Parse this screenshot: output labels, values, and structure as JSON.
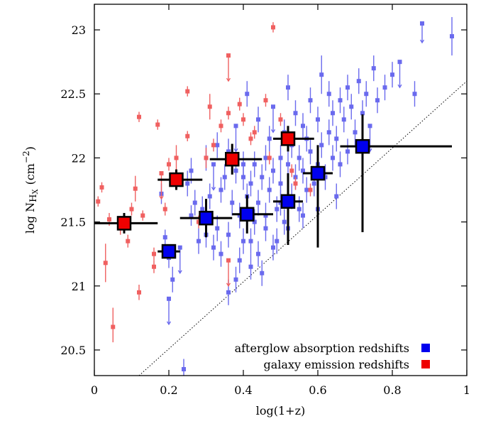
{
  "chart_data": {
    "type": "scatter",
    "xlabel": "log(1+z)",
    "ylabel": {
      "base": "log N",
      "sub1": "H",
      "sub2": "X",
      "unit_open": "(cm",
      "unit_sup": "−2",
      "unit_close": ")"
    },
    "xlim": [
      0,
      1
    ],
    "ylim": [
      20.3,
      23.2
    ],
    "xticks": [
      0,
      0.2,
      0.4,
      0.6,
      0.8,
      1
    ],
    "xtick_labels": [
      "0",
      "0.2",
      "0.4",
      "0.6",
      "0.8",
      "1"
    ],
    "yticks": [
      20.5,
      21,
      21.5,
      22,
      22.5,
      23
    ],
    "ytick_labels": [
      "20.5",
      "21",
      "21.5",
      "22",
      "22.5",
      "23"
    ],
    "grid": false,
    "legend_position": "bottom-right",
    "colors": {
      "afterglow_light": "#6a6aee",
      "galaxy_light": "#f06060",
      "afterglow_big": "#0000ee",
      "galaxy_big": "#ee0000",
      "errorbar": "#000000"
    },
    "reference_line": {
      "style": "dotted",
      "points": [
        [
          0.12,
          20.3
        ],
        [
          1.0,
          22.6
        ]
      ]
    },
    "series": [
      {
        "name": "afterglow absorption redshifts",
        "kind": "individual",
        "points": [
          [
            0.18,
            21.72,
            0.08,
            0.08
          ],
          [
            0.19,
            21.38,
            0.06,
            0.06
          ],
          [
            0.2,
            21.22,
            0.08,
            0.1
          ],
          [
            0.21,
            21.05,
            0.1,
            0.1
          ],
          [
            0.23,
            21.3,
            0,
            0.2
          ],
          [
            0.25,
            21.8,
            0.1,
            0.1
          ],
          [
            0.26,
            21.55,
            0.08,
            0.08
          ],
          [
            0.26,
            21.9,
            0.1,
            0.1
          ],
          [
            0.27,
            21.65,
            0.1,
            0.1
          ],
          [
            0.28,
            21.35,
            0.1,
            0.1
          ],
          [
            0.29,
            21.6,
            0.1,
            0.1
          ],
          [
            0.3,
            22.0,
            0.1,
            0.1
          ],
          [
            0.3,
            21.4,
            0.1,
            0.1
          ],
          [
            0.31,
            21.7,
            0.1,
            0.1
          ],
          [
            0.32,
            21.95,
            0,
            0.2
          ],
          [
            0.32,
            21.3,
            0.1,
            0.1
          ],
          [
            0.33,
            21.45,
            0.1,
            0.1
          ],
          [
            0.33,
            22.1,
            0.1,
            0.1
          ],
          [
            0.34,
            21.75,
            0.1,
            0.1
          ],
          [
            0.34,
            21.25,
            0.1,
            0.1
          ],
          [
            0.35,
            21.85,
            0.1,
            0.1
          ],
          [
            0.36,
            22.05,
            0.1,
            0.1
          ],
          [
            0.36,
            21.4,
            0.1,
            0.1
          ],
          [
            0.37,
            21.65,
            0.1,
            0.1
          ],
          [
            0.38,
            21.9,
            0.1,
            0.1
          ],
          [
            0.38,
            22.25,
            0,
            0.2
          ],
          [
            0.39,
            21.2,
            0.1,
            0.1
          ],
          [
            0.39,
            21.55,
            0.1,
            0.1
          ],
          [
            0.4,
            21.85,
            0.1,
            0.1
          ],
          [
            0.4,
            21.95,
            0.1,
            0.1
          ],
          [
            0.41,
            21.7,
            0.1,
            0.1
          ],
          [
            0.41,
            22.5,
            0.1,
            0.1
          ],
          [
            0.42,
            21.35,
            0.1,
            0.1
          ],
          [
            0.42,
            21.8,
            0.1,
            0.1
          ],
          [
            0.43,
            21.95,
            0.1,
            0.1
          ],
          [
            0.43,
            21.5,
            0.1,
            0.1
          ],
          [
            0.44,
            22.3,
            0.1,
            0.1
          ],
          [
            0.44,
            21.65,
            0.1,
            0.1
          ],
          [
            0.45,
            21.85,
            0.1,
            0.1
          ],
          [
            0.45,
            21.1,
            0.1,
            0.1
          ],
          [
            0.46,
            22.0,
            0.1,
            0.1
          ],
          [
            0.46,
            21.55,
            0.1,
            0.1
          ],
          [
            0.47,
            22.15,
            0.1,
            0.1
          ],
          [
            0.47,
            21.75,
            0.1,
            0.1
          ],
          [
            0.48,
            21.9,
            0.1,
            0.1
          ],
          [
            0.48,
            22.4,
            0,
            0.2
          ],
          [
            0.49,
            21.6,
            0.1,
            0.1
          ],
          [
            0.49,
            21.35,
            0.1,
            0.1
          ],
          [
            0.5,
            22.0,
            0.1,
            0.1
          ],
          [
            0.5,
            21.8,
            0.1,
            0.1
          ],
          [
            0.51,
            22.2,
            0.1,
            0.1
          ],
          [
            0.51,
            21.5,
            0.1,
            0.1
          ],
          [
            0.52,
            21.95,
            0.1,
            0.1
          ],
          [
            0.52,
            22.55,
            0.1,
            0.1
          ],
          [
            0.53,
            21.7,
            0.1,
            0.1
          ],
          [
            0.53,
            22.1,
            0.1,
            0.1
          ],
          [
            0.54,
            21.85,
            0.1,
            0.1
          ],
          [
            0.54,
            22.35,
            0.1,
            0.1
          ],
          [
            0.55,
            21.6,
            0.1,
            0.1
          ],
          [
            0.55,
            22.0,
            0.1,
            0.1
          ],
          [
            0.56,
            22.25,
            0.1,
            0.1
          ],
          [
            0.56,
            21.9,
            0.1,
            0.1
          ],
          [
            0.57,
            22.15,
            0.1,
            0.1
          ],
          [
            0.57,
            21.75,
            0.1,
            0.1
          ],
          [
            0.58,
            22.45,
            0.1,
            0.1
          ],
          [
            0.58,
            22.05,
            0.1,
            0.1
          ],
          [
            0.59,
            21.8,
            0.1,
            0.1
          ],
          [
            0.6,
            22.3,
            0.1,
            0.1
          ],
          [
            0.6,
            21.95,
            0.1,
            0.1
          ],
          [
            0.61,
            22.1,
            0.1,
            0.1
          ],
          [
            0.61,
            22.65,
            0.15,
            0.15
          ],
          [
            0.62,
            21.85,
            0.1,
            0.1
          ],
          [
            0.63,
            22.2,
            0.1,
            0.1
          ],
          [
            0.63,
            22.5,
            0.1,
            0.1
          ],
          [
            0.64,
            22.0,
            0.1,
            0.1
          ],
          [
            0.64,
            22.35,
            0.1,
            0.1
          ],
          [
            0.65,
            22.15,
            0.1,
            0.1
          ],
          [
            0.66,
            22.45,
            0.1,
            0.1
          ],
          [
            0.66,
            21.95,
            0.1,
            0.1
          ],
          [
            0.67,
            22.3,
            0.1,
            0.1
          ],
          [
            0.68,
            22.55,
            0.1,
            0.1
          ],
          [
            0.68,
            22.05,
            0.1,
            0.1
          ],
          [
            0.69,
            22.4,
            0.1,
            0.1
          ],
          [
            0.7,
            22.2,
            0.1,
            0.1
          ],
          [
            0.71,
            22.6,
            0.1,
            0.1
          ],
          [
            0.72,
            22.35,
            0.1,
            0.1
          ],
          [
            0.73,
            22.5,
            0.1,
            0.1
          ],
          [
            0.74,
            22.25,
            0,
            0.2
          ],
          [
            0.75,
            22.7,
            0.1,
            0.1
          ],
          [
            0.76,
            22.45,
            0.1,
            0.1
          ],
          [
            0.78,
            22.55,
            0.1,
            0.1
          ],
          [
            0.8,
            22.65,
            0.1,
            0.1
          ],
          [
            0.82,
            22.75,
            0,
            0.2
          ],
          [
            0.86,
            22.5,
            0.1,
            0.1
          ],
          [
            0.88,
            23.05,
            0,
            0.15
          ],
          [
            0.96,
            22.95,
            0.15,
            0.15
          ],
          [
            0.52,
            21.45,
            0.1,
            0.1
          ],
          [
            0.44,
            21.25,
            0.1,
            0.1
          ],
          [
            0.38,
            21.05,
            0.1,
            0.1
          ],
          [
            0.48,
            21.3,
            0.1,
            0.1
          ],
          [
            0.36,
            20.95,
            0.1,
            0.1
          ],
          [
            0.56,
            21.55,
            0.1,
            0.1
          ],
          [
            0.5,
            21.65,
            0.1,
            0.1
          ],
          [
            0.42,
            21.15,
            0.1,
            0.1
          ],
          [
            0.6,
            21.6,
            0.1,
            0.1
          ],
          [
            0.65,
            21.7,
            0.1,
            0.1
          ],
          [
            0.4,
            21.35,
            0.1,
            0.1
          ],
          [
            0.46,
            21.45,
            0.1,
            0.1
          ],
          [
            0.24,
            20.35,
            0.08,
            0.08
          ],
          [
            0.2,
            20.9,
            0,
            0.2
          ]
        ]
      },
      {
        "name": "galaxy emission redshifts",
        "kind": "individual",
        "points": [
          [
            0.01,
            21.66,
            0.04,
            0.04
          ],
          [
            0.02,
            21.77,
            0.04,
            0.04
          ],
          [
            0.03,
            21.18,
            0.15,
            0.15
          ],
          [
            0.04,
            21.52,
            0.05,
            0.05
          ],
          [
            0.05,
            20.68,
            0.12,
            0.15
          ],
          [
            0.07,
            21.45,
            0.05,
            0.05
          ],
          [
            0.09,
            21.35,
            0.05,
            0.05
          ],
          [
            0.1,
            21.6,
            0.05,
            0.05
          ],
          [
            0.11,
            21.76,
            0.1,
            0.1
          ],
          [
            0.12,
            20.95,
            0.06,
            0.06
          ],
          [
            0.12,
            22.32,
            0.04,
            0.04
          ],
          [
            0.13,
            21.55,
            0.04,
            0.04
          ],
          [
            0.16,
            21.15,
            0.05,
            0.05
          ],
          [
            0.16,
            21.25,
            0.05,
            0.05
          ],
          [
            0.17,
            22.26,
            0.04,
            0.04
          ],
          [
            0.18,
            21.88,
            0,
            0.2
          ],
          [
            0.19,
            21.6,
            0.05,
            0.05
          ],
          [
            0.2,
            21.95,
            0.05,
            0.05
          ],
          [
            0.22,
            22.0,
            0.1,
            0.1
          ],
          [
            0.25,
            22.17,
            0.04,
            0.04
          ],
          [
            0.25,
            22.52,
            0.04,
            0.04
          ],
          [
            0.28,
            21.5,
            0.05,
            0.05
          ],
          [
            0.3,
            22.0,
            0.08,
            0.08
          ],
          [
            0.31,
            22.4,
            0.1,
            0.1
          ],
          [
            0.32,
            22.1,
            0.05,
            0.05
          ],
          [
            0.34,
            22.25,
            0.05,
            0.05
          ],
          [
            0.36,
            22.35,
            0.05,
            0.05
          ],
          [
            0.36,
            22.8,
            0,
            0.2
          ],
          [
            0.39,
            22.42,
            0.05,
            0.05
          ],
          [
            0.4,
            22.3,
            0.05,
            0.05
          ],
          [
            0.42,
            22.15,
            0.05,
            0.05
          ],
          [
            0.43,
            22.2,
            0.05,
            0.05
          ],
          [
            0.46,
            22.45,
            0.05,
            0.05
          ],
          [
            0.47,
            22.0,
            0.05,
            0.05
          ],
          [
            0.5,
            22.3,
            0.05,
            0.05
          ],
          [
            0.53,
            21.9,
            0.05,
            0.05
          ],
          [
            0.54,
            21.8,
            0.05,
            0.05
          ],
          [
            0.58,
            21.75,
            0.05,
            0.05
          ],
          [
            0.36,
            21.2,
            0,
            0.2
          ],
          [
            0.48,
            23.02,
            0.04,
            0.04
          ]
        ]
      },
      {
        "name": "afterglow absorption redshifts",
        "kind": "binned",
        "points": [
          {
            "x": 0.2,
            "y": 21.27,
            "xerr": [
              0.03,
              0.03
            ],
            "yerr": [
              0.05,
              0.05
            ]
          },
          {
            "x": 0.3,
            "y": 21.53,
            "xerr": [
              0.07,
              0.07
            ],
            "yerr": [
              0.15,
              0.15
            ]
          },
          {
            "x": 0.41,
            "y": 21.56,
            "xerr": [
              0.04,
              0.07
            ],
            "yerr": [
              0.15,
              0.15
            ]
          },
          {
            "x": 0.52,
            "y": 21.66,
            "xerr": [
              0.04,
              0.04
            ],
            "yerr": [
              0.34,
              0.22
            ]
          },
          {
            "x": 0.6,
            "y": 21.88,
            "xerr": [
              0.04,
              0.04
            ],
            "yerr": [
              0.58,
              0.22
            ]
          },
          {
            "x": 0.72,
            "y": 22.09,
            "xerr": [
              0.06,
              0.24
            ],
            "yerr": [
              0.67,
              0.25
            ]
          }
        ]
      },
      {
        "name": "galaxy emission redshifts",
        "kind": "binned",
        "points": [
          {
            "x": 0.08,
            "y": 21.49,
            "xerr": [
              0.08,
              0.09
            ],
            "yerr": [
              0.08,
              0.08
            ]
          },
          {
            "x": 0.22,
            "y": 21.83,
            "xerr": [
              0.05,
              0.07
            ],
            "yerr": [
              0.08,
              0.08
            ]
          },
          {
            "x": 0.37,
            "y": 21.99,
            "xerr": [
              0.06,
              0.08
            ],
            "yerr": [
              0.12,
              0.12
            ]
          },
          {
            "x": 0.52,
            "y": 22.15,
            "xerr": [
              0.04,
              0.07
            ],
            "yerr": [
              0.1,
              0.1
            ]
          }
        ]
      }
    ]
  }
}
